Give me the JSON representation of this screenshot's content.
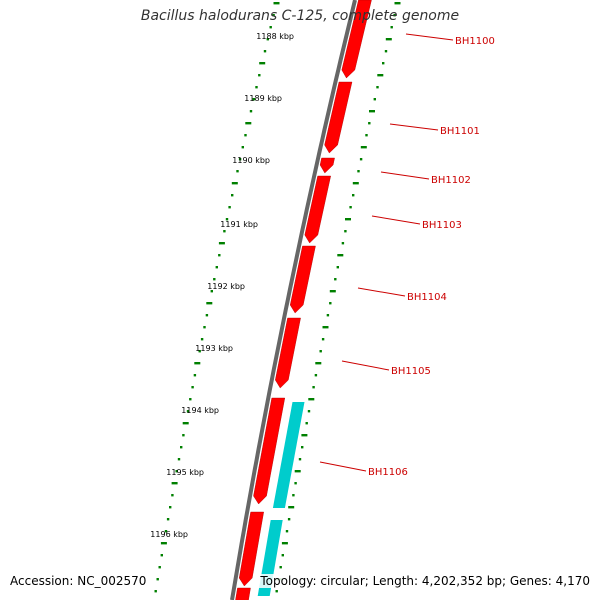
{
  "title": "Bacillus halodurans C-125, complete genome",
  "accession": "Accession: NC_002570",
  "summary": "Topology: circular; Length: 4,202,352 bp; Genes: 4,170",
  "colors": {
    "backbone": "#666666",
    "forward_cds": "#ff0000",
    "reverse_cds": "#00cccc",
    "scale_ticks": "#008000",
    "labels": "#cc0000"
  },
  "scale_labels": [
    "1188 kbp",
    "1189 kbp",
    "1190 kbp",
    "1191 kbp",
    "1192 kbp",
    "1193 kbp",
    "1194 kbp",
    "1195 kbp",
    "1196 kbp"
  ],
  "gene_labels": [
    "BH1100",
    "BH1101",
    "BH1102",
    "BH1103",
    "BH1104",
    "BH1105",
    "BH1106"
  ]
}
